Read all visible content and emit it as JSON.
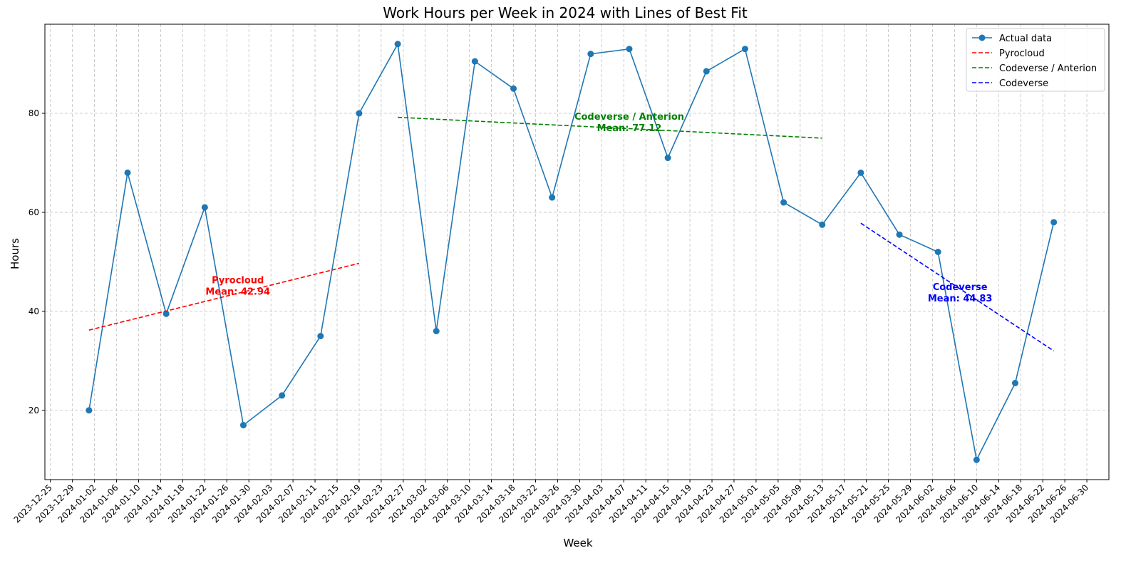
{
  "chart_data": {
    "type": "line",
    "title": "Work Hours per Week in 2024 with Lines of Best Fit",
    "xlabel": "Week",
    "ylabel": "Hours",
    "xlim": [
      "2023-12-24",
      "2024-07-04"
    ],
    "ylim": [
      6,
      98
    ],
    "y_ticks": [
      20,
      40,
      60,
      80
    ],
    "x_ticks": [
      "2023-12-25",
      "2023-12-29",
      "2024-01-02",
      "2024-01-06",
      "2024-01-10",
      "2024-01-14",
      "2024-01-18",
      "2024-01-22",
      "2024-01-26",
      "2024-01-30",
      "2024-02-03",
      "2024-02-07",
      "2024-02-11",
      "2024-02-15",
      "2024-02-19",
      "2024-02-23",
      "2024-02-27",
      "2024-03-02",
      "2024-03-06",
      "2024-03-10",
      "2024-03-14",
      "2024-03-18",
      "2024-03-22",
      "2024-03-26",
      "2024-03-30",
      "2024-04-03",
      "2024-04-07",
      "2024-04-11",
      "2024-04-15",
      "2024-04-19",
      "2024-04-23",
      "2024-04-27",
      "2024-05-01",
      "2024-05-05",
      "2024-05-09",
      "2024-05-13",
      "2024-05-17",
      "2024-05-21",
      "2024-05-25",
      "2024-05-29",
      "2024-06-02",
      "2024-06-06",
      "2024-06-10",
      "2024-06-14",
      "2024-06-18",
      "2024-06-22",
      "2024-06-26",
      "2024-06-30"
    ],
    "grid": true,
    "legend_position": "top-right",
    "series": [
      {
        "name": "Actual data",
        "style": "line-marker",
        "color": "#1f77b4",
        "x": [
          "2024-01-01",
          "2024-01-08",
          "2024-01-15",
          "2024-01-22",
          "2024-01-29",
          "2024-02-05",
          "2024-02-12",
          "2024-02-19",
          "2024-02-26",
          "2024-03-04",
          "2024-03-11",
          "2024-03-18",
          "2024-03-25",
          "2024-04-01",
          "2024-04-08",
          "2024-04-15",
          "2024-04-22",
          "2024-04-29",
          "2024-05-06",
          "2024-05-13",
          "2024-05-20",
          "2024-05-27",
          "2024-06-03",
          "2024-06-10",
          "2024-06-17",
          "2024-06-24"
        ],
        "y": [
          20,
          68,
          39.5,
          61,
          17,
          23,
          35,
          80,
          94,
          36,
          90.5,
          85,
          63,
          92,
          93,
          71,
          88.5,
          93,
          62,
          57.5,
          68,
          55.5,
          52,
          10,
          25.5,
          58
        ]
      },
      {
        "name": "Pyrocloud",
        "style": "dashed",
        "color": "#ff0000",
        "x": [
          "2024-01-01",
          "2024-02-19"
        ],
        "y": [
          36.2,
          49.7
        ]
      },
      {
        "name": "Codeverse / Anterion",
        "style": "dashed",
        "color": "#008000",
        "x": [
          "2024-02-26",
          "2024-05-13"
        ],
        "y": [
          79.2,
          75.0
        ]
      },
      {
        "name": "Codeverse",
        "style": "dashed",
        "color": "#0000ff",
        "x": [
          "2024-05-20",
          "2024-06-24"
        ],
        "y": [
          57.8,
          32.0
        ]
      }
    ],
    "annotations": [
      {
        "lines": [
          "Pyrocloud",
          "Mean: 42.94"
        ],
        "x": "2024-01-28",
        "y": 45.7,
        "color": "#ff0000"
      },
      {
        "lines": [
          "Codeverse / Anterion",
          "Mean: 77.12"
        ],
        "x": "2024-04-08",
        "y": 78.7,
        "color": "#008000"
      },
      {
        "lines": [
          "Codeverse",
          "Mean: 44.83"
        ],
        "x": "2024-06-07",
        "y": 44.3,
        "color": "#0000ff"
      }
    ]
  }
}
